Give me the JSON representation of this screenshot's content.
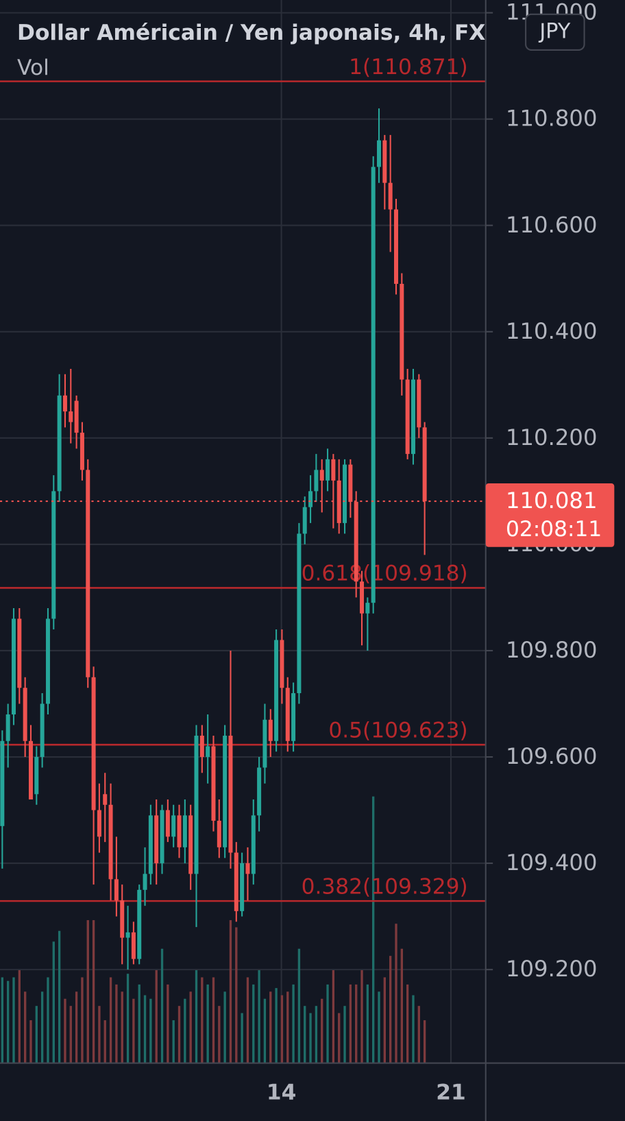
{
  "chart_data": {
    "type": "candlestick",
    "title": "Dollar Américain / Yen japonais, 4h, FX",
    "volume_label": "Vol",
    "currency_button": "JPY",
    "countdown": "02:08:11",
    "up_color": "#26a69a",
    "down_color": "#ef5350",
    "volume_up_color": "#1f6e69",
    "volume_down_color": "#7d3a3d",
    "price_line_color": "#f05350",
    "fib_color": "#b8282c",
    "open": [
      109.47,
      109.63,
      109.68,
      109.86,
      109.73,
      109.63,
      109.53,
      109.6,
      109.7,
      109.86,
      110.1,
      110.28,
      110.25,
      110.27,
      110.21,
      110.14,
      109.75,
      109.5,
      109.53,
      109.51,
      109.37,
      109.33,
      109.26,
      109.27,
      109.22,
      109.35,
      109.38,
      109.49,
      109.4,
      109.5,
      109.45,
      109.49,
      109.43,
      109.49,
      109.38,
      109.64,
      109.6,
      109.62,
      109.48,
      109.43,
      109.64,
      109.42,
      109.31,
      109.4,
      109.38,
      109.49,
      109.58,
      109.67,
      109.63,
      109.82,
      109.73,
      109.63,
      109.72,
      110.02,
      110.07,
      110.1,
      110.14,
      110.12,
      110.16,
      110.12,
      110.04,
      110.15,
      110.08,
      109.93,
      109.87,
      109.89,
      110.71,
      110.76,
      110.68,
      110.63,
      110.49,
      110.31,
      110.17,
      110.31,
      110.22
    ],
    "high": [
      109.65,
      109.7,
      109.88,
      109.88,
      109.75,
      109.66,
      109.62,
      109.72,
      109.88,
      110.13,
      110.32,
      110.32,
      110.33,
      110.28,
      110.23,
      110.16,
      109.77,
      109.55,
      109.57,
      109.55,
      109.45,
      109.36,
      109.32,
      109.29,
      109.36,
      109.43,
      109.51,
      109.52,
      109.51,
      109.52,
      109.51,
      109.51,
      109.52,
      109.51,
      109.66,
      109.66,
      109.68,
      109.64,
      109.52,
      109.66,
      109.8,
      109.44,
      109.42,
      109.43,
      109.52,
      109.6,
      109.7,
      109.69,
      109.84,
      109.84,
      109.75,
      109.74,
      110.04,
      110.09,
      110.13,
      110.17,
      110.16,
      110.18,
      110.17,
      110.16,
      110.16,
      110.16,
      110.1,
      109.95,
      109.9,
      110.73,
      110.82,
      110.77,
      110.77,
      110.65,
      110.51,
      110.33,
      110.33,
      110.32,
      110.23
    ],
    "low": [
      109.39,
      109.58,
      109.66,
      109.7,
      109.6,
      109.52,
      109.51,
      109.58,
      109.68,
      109.84,
      110.08,
      110.22,
      110.19,
      110.18,
      110.12,
      109.73,
      109.36,
      109.42,
      109.44,
      109.33,
      109.3,
      109.21,
      109.2,
      109.21,
      109.21,
      109.32,
      109.36,
      109.36,
      109.38,
      109.44,
      109.43,
      109.41,
      109.4,
      109.35,
      109.28,
      109.57,
      109.55,
      109.46,
      109.41,
      109.41,
      109.39,
      109.29,
      109.3,
      109.33,
      109.36,
      109.46,
      109.55,
      109.6,
      109.61,
      109.7,
      109.61,
      109.61,
      109.7,
      110.0,
      110.04,
      110.08,
      110.06,
      110.1,
      110.03,
      110.02,
      110.02,
      110.05,
      109.9,
      109.81,
      109.8,
      109.87,
      110.68,
      110.63,
      110.55,
      110.47,
      110.28,
      110.16,
      110.15,
      110.2,
      109.98
    ],
    "close": [
      109.63,
      109.68,
      109.86,
      109.73,
      109.63,
      109.52,
      109.6,
      109.7,
      109.86,
      110.1,
      110.28,
      110.25,
      110.23,
      110.21,
      110.14,
      109.75,
      109.5,
      109.45,
      109.51,
      109.37,
      109.33,
      109.26,
      109.27,
      109.22,
      109.35,
      109.38,
      109.49,
      109.4,
      109.5,
      109.45,
      109.49,
      109.43,
      109.49,
      109.38,
      109.64,
      109.6,
      109.62,
      109.48,
      109.43,
      109.64,
      109.42,
      109.31,
      109.4,
      109.38,
      109.49,
      109.58,
      109.67,
      109.63,
      109.82,
      109.73,
      109.63,
      109.72,
      110.02,
      110.07,
      110.1,
      110.14,
      110.12,
      110.16,
      110.12,
      110.04,
      110.15,
      110.08,
      109.93,
      109.87,
      109.89,
      110.71,
      110.76,
      110.68,
      110.63,
      110.49,
      110.31,
      110.17,
      110.31,
      110.22,
      110.081
    ],
    "volume": [
      120,
      115,
      120,
      130,
      100,
      60,
      80,
      100,
      120,
      170,
      185,
      90,
      80,
      100,
      120,
      200,
      200,
      80,
      60,
      120,
      110,
      100,
      125,
      90,
      110,
      95,
      90,
      130,
      160,
      110,
      60,
      80,
      90,
      100,
      130,
      120,
      110,
      120,
      80,
      100,
      200,
      190,
      70,
      120,
      110,
      130,
      90,
      100,
      105,
      95,
      100,
      110,
      160,
      80,
      70,
      80,
      90,
      110,
      130,
      70,
      80,
      110,
      110,
      130,
      110,
      373,
      100,
      120,
      150,
      195,
      160,
      110,
      95,
      80,
      60
    ],
    "volume_lim": [
      0,
      400
    ],
    "xlim": [
      -0.4,
      84.7
    ],
    "xticks": [
      {
        "value": 48.9,
        "label": "14"
      },
      {
        "value": 78.6,
        "label": "21"
      }
    ],
    "ylim": [
      109.024,
      111.024
    ],
    "yticks": [
      {
        "value": 109.2,
        "label": "109.200"
      },
      {
        "value": 109.4,
        "label": "109.400"
      },
      {
        "value": 109.6,
        "label": "109.600"
      },
      {
        "value": 109.8,
        "label": "109.800"
      },
      {
        "value": 110.0,
        "label": "110.000"
      },
      {
        "value": 110.2,
        "label": "110.200"
      },
      {
        "value": 110.4,
        "label": "110.400"
      },
      {
        "value": 110.6,
        "label": "110.600"
      },
      {
        "value": 110.8,
        "label": "110.800"
      },
      {
        "value": 111.0,
        "label": "111.000"
      }
    ],
    "fib_levels": [
      {
        "value": 110.871,
        "label": "1(110.871)"
      },
      {
        "value": 109.918,
        "label": "0.618(109.918)"
      },
      {
        "value": 109.623,
        "label": "0.5(109.623)"
      },
      {
        "value": 109.329,
        "label": "0.382(109.329)"
      }
    ],
    "grid": true
  }
}
